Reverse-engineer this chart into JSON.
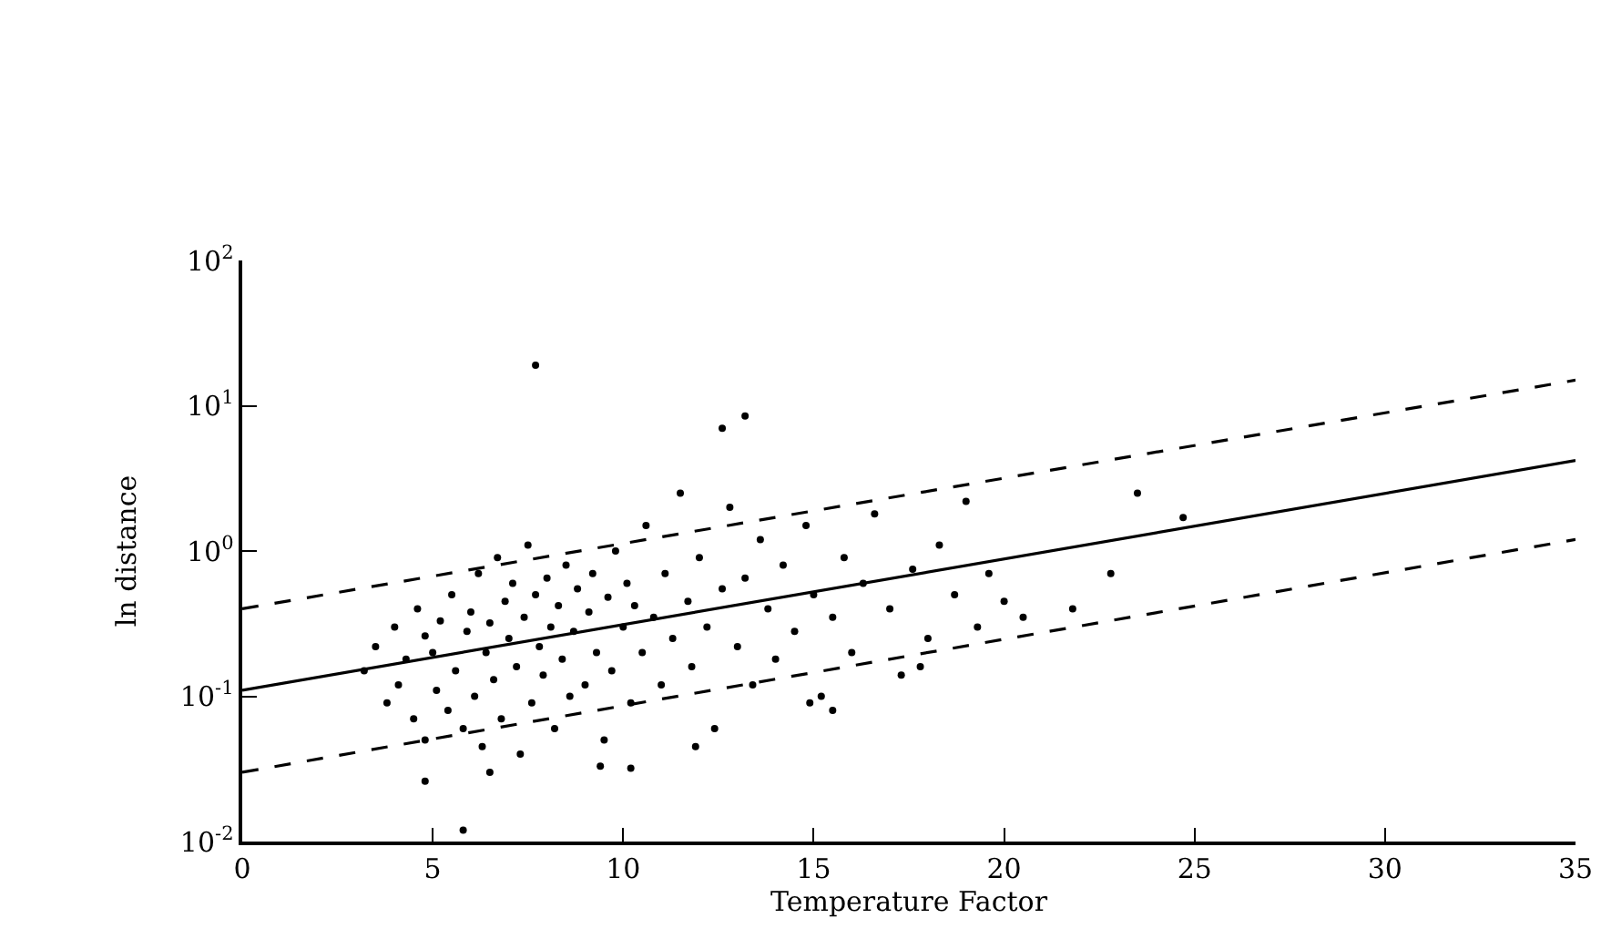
{
  "chart_data": {
    "type": "scatter",
    "xlabel": "Temperature Factor",
    "ylabel": "ln distance",
    "log": "y",
    "grid": false,
    "xlim": [
      0,
      35
    ],
    "xticks": [
      0,
      5,
      10,
      15,
      20,
      25,
      30,
      35
    ],
    "ylim": [
      0.01,
      100
    ],
    "yticks": [
      {
        "value": 0.01,
        "label": "10$^{-2}$"
      },
      {
        "value": 0.1,
        "label": "10$^{-1}$"
      },
      {
        "value": 1,
        "label": "10$^{0}$"
      },
      {
        "value": 10,
        "label": "10$^{1}$"
      },
      {
        "value": 100,
        "label": "10$^{2}$"
      }
    ],
    "series": [
      {
        "marker": "circle",
        "color": "#000000",
        "x": [
          3.2,
          3.5,
          3.8,
          4.0,
          4.1,
          4.3,
          4.5,
          4.6,
          4.8,
          4.8,
          5.0,
          5.1,
          5.2,
          5.4,
          5.5,
          5.6,
          5.8,
          5.9,
          6.0,
          6.1,
          6.2,
          6.3,
          6.4,
          6.5,
          6.6,
          6.7,
          6.8,
          6.9,
          7.0,
          7.1,
          7.2,
          7.3,
          7.4,
          7.5,
          7.6,
          7.7,
          7.8,
          7.9,
          8.0,
          8.1,
          8.2,
          8.3,
          8.4,
          8.5,
          8.6,
          8.7,
          8.8,
          9.0,
          9.1,
          9.2,
          9.3,
          9.5,
          9.6,
          9.7,
          9.8,
          10.0,
          10.1,
          10.2,
          10.3,
          10.5,
          10.6,
          10.8,
          11.0,
          11.1,
          11.3,
          11.5,
          11.7,
          11.8,
          12.0,
          12.2,
          12.4,
          12.6,
          12.8,
          13.0,
          13.2,
          13.4,
          13.6,
          13.8,
          14.0,
          14.2,
          14.5,
          14.8,
          15.0,
          15.2,
          15.5,
          15.8,
          16.0,
          16.3,
          16.6,
          17.0,
          17.3,
          17.6,
          18.0,
          18.3,
          18.7,
          19.0,
          19.3,
          19.6,
          20.0,
          20.5,
          21.8,
          22.8,
          23.5,
          24.7,
          5.8,
          4.8,
          10.2,
          7.7,
          13.2,
          12.6,
          15.5,
          6.5,
          9.4,
          11.9,
          14.9,
          17.8
        ],
        "values": [
          0.15,
          0.22,
          0.09,
          0.3,
          0.12,
          0.18,
          0.07,
          0.4,
          0.05,
          0.26,
          0.2,
          0.11,
          0.33,
          0.08,
          0.5,
          0.15,
          0.06,
          0.28,
          0.38,
          0.1,
          0.7,
          0.045,
          0.2,
          0.32,
          0.13,
          0.9,
          0.07,
          0.45,
          0.25,
          0.6,
          0.16,
          0.04,
          0.35,
          1.1,
          0.09,
          0.5,
          0.22,
          0.14,
          0.65,
          0.3,
          0.06,
          0.42,
          0.18,
          0.8,
          0.1,
          0.28,
          0.55,
          0.12,
          0.38,
          0.7,
          0.2,
          0.05,
          0.48,
          0.15,
          1.0,
          0.3,
          0.6,
          0.09,
          0.42,
          0.2,
          1.5,
          0.35,
          0.12,
          0.7,
          0.25,
          2.5,
          0.45,
          0.16,
          0.9,
          0.3,
          0.06,
          0.55,
          2.0,
          0.22,
          0.65,
          0.12,
          1.2,
          0.4,
          0.18,
          0.8,
          0.28,
          1.5,
          0.5,
          0.1,
          0.35,
          0.9,
          0.2,
          0.6,
          1.8,
          0.4,
          0.14,
          0.75,
          0.25,
          1.1,
          0.5,
          2.2,
          0.3,
          0.7,
          0.45,
          0.35,
          0.4,
          0.7,
          2.5,
          1.7,
          0.012,
          0.026,
          0.032,
          19,
          8.5,
          7,
          0.08,
          0.03,
          0.033,
          0.045,
          0.09,
          0.16
        ]
      },
      {
        "type": "line",
        "marker": "none",
        "line_style": "solid",
        "color": "#000000",
        "x": [
          0,
          35
        ],
        "values": [
          0.11,
          4.2
        ]
      },
      {
        "type": "line",
        "marker": "none",
        "line_style": "dashed",
        "color": "#000000",
        "x": [
          0,
          35
        ],
        "values": [
          0.4,
          15
        ]
      },
      {
        "type": "line",
        "marker": "none",
        "line_style": "dashed",
        "color": "#000000",
        "x": [
          0,
          35
        ],
        "values": [
          0.03,
          1.2
        ]
      }
    ]
  }
}
